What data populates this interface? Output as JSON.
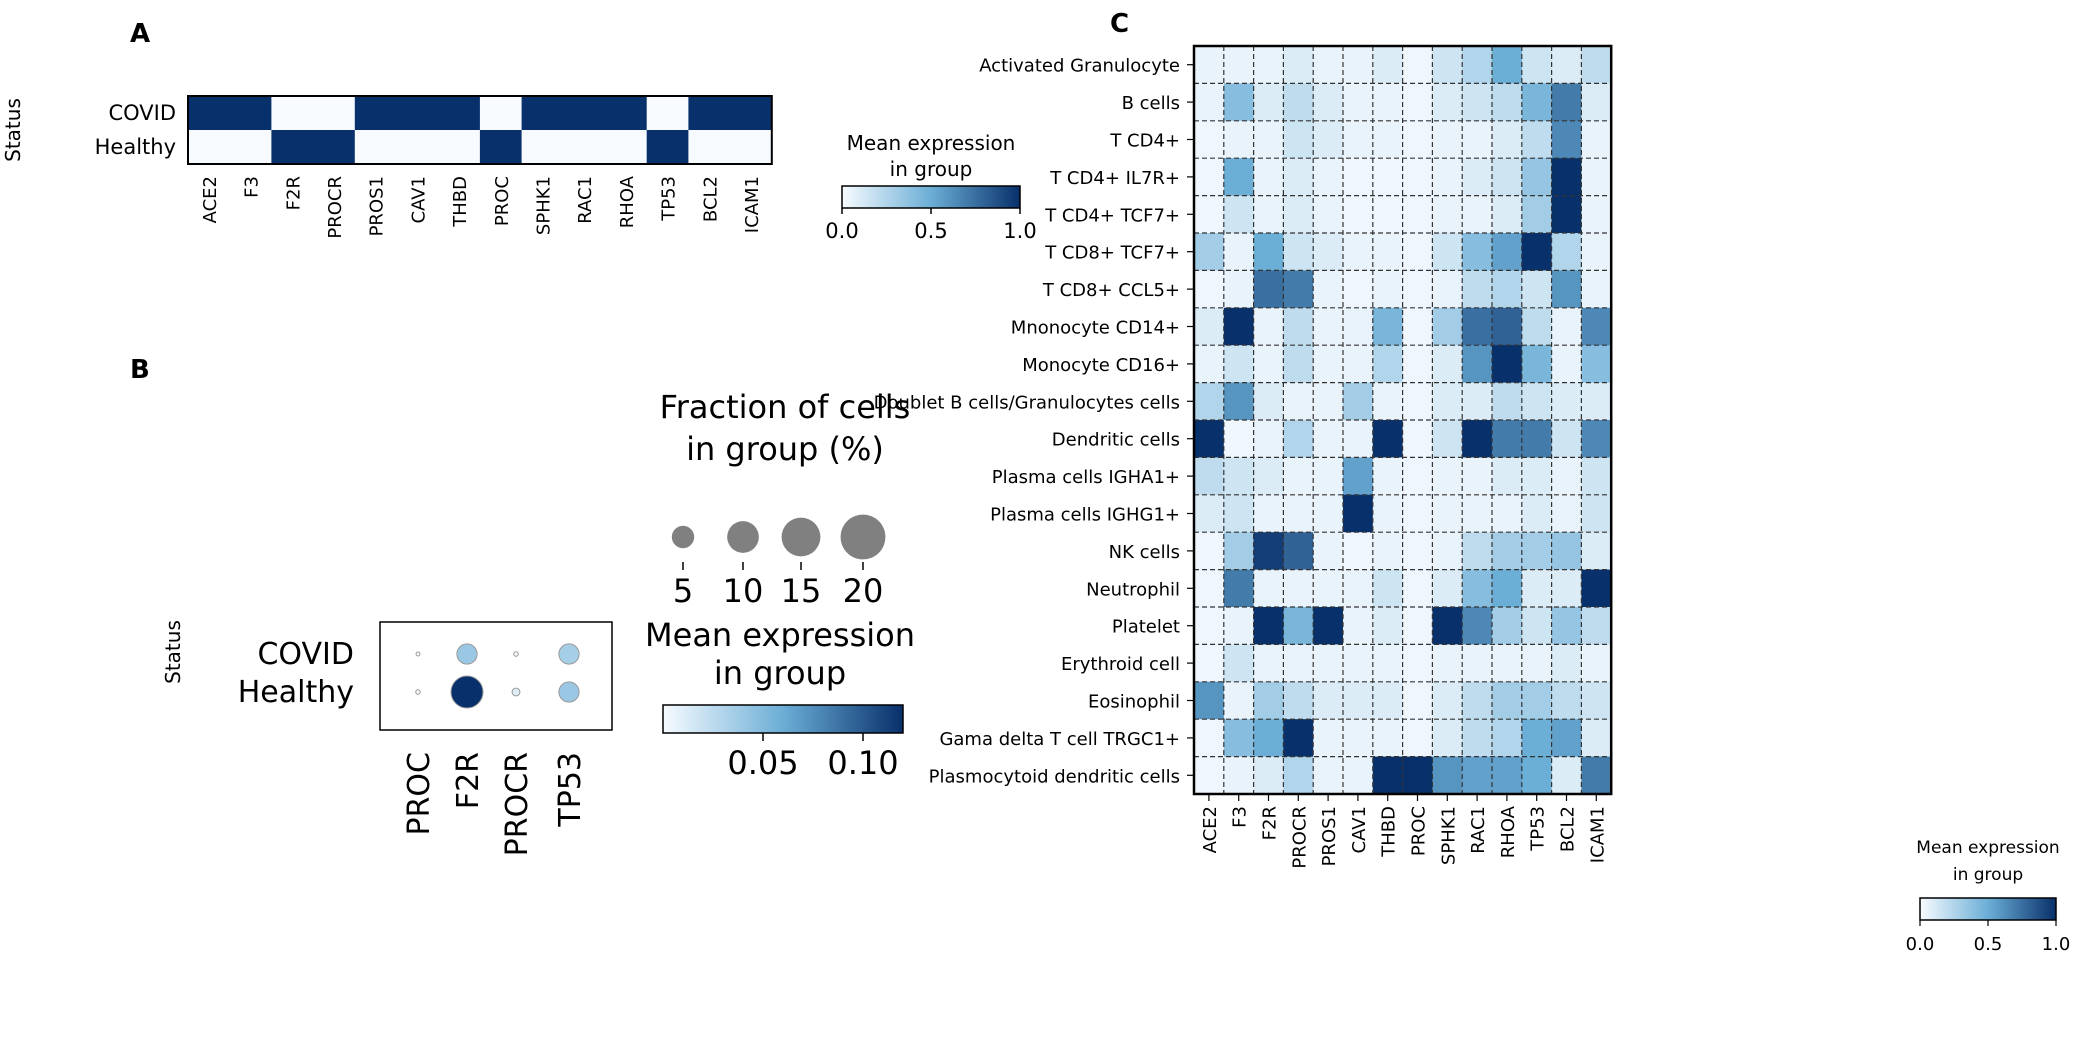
{
  "chart_data": [
    {
      "panel": "A",
      "type": "heatmap",
      "ylabel": "Status",
      "rows": [
        "COVID",
        "Healthy"
      ],
      "columns": [
        "ACE2",
        "F3",
        "F2R",
        "PROCR",
        "PROS1",
        "CAV1",
        "THBD",
        "PROC",
        "SPHK1",
        "RAC1",
        "RHOA",
        "TP53",
        "BCL2",
        "ICAM1"
      ],
      "values": [
        [
          1,
          1,
          0,
          0,
          1,
          1,
          1,
          0,
          1,
          1,
          1,
          0,
          1,
          1
        ],
        [
          0,
          0,
          1,
          1,
          0,
          0,
          0,
          1,
          0,
          0,
          0,
          1,
          0,
          0
        ]
      ],
      "colorbar": {
        "title_line1": "Mean expression",
        "title_line2": "in group",
        "ticks": [
          "0.0",
          "0.5",
          "1.0"
        ],
        "range": [
          0,
          1
        ]
      }
    },
    {
      "panel": "B",
      "type": "dotplot",
      "ylabel": "Status",
      "rows": [
        "COVID",
        "Healthy"
      ],
      "columns": [
        "PROC",
        "F2R",
        "PROCR",
        "TP53"
      ],
      "fraction_percent": [
        [
          0.3,
          8,
          0.4,
          8
        ],
        [
          0.4,
          20,
          1.2,
          8
        ]
      ],
      "mean_expression": [
        [
          0.0,
          0.04,
          0.0,
          0.035
        ],
        [
          0.0,
          0.12,
          0.01,
          0.04
        ]
      ],
      "size_legend": {
        "title_line1": "Fraction of cells",
        "title_line2": "in group (%)",
        "values": [
          5,
          10,
          15,
          20
        ],
        "labels": [
          "5",
          "10",
          "15",
          "20"
        ]
      },
      "colorbar": {
        "title_line1": "Mean expression",
        "title_line2": "in group",
        "ticks": [
          "0.05",
          "0.10"
        ],
        "tick_values": [
          0.05,
          0.1
        ],
        "range": [
          0,
          0.12
        ]
      }
    },
    {
      "panel": "C",
      "type": "heatmap",
      "rows": [
        "Activated Granulocyte",
        "B cells",
        "T CD4+",
        "T CD4+ IL7R+",
        "T CD4+ TCF7+",
        "T CD8+ TCF7+",
        "T CD8+ CCL5+",
        "Mnonocyte CD14+",
        "Monocyte CD16+",
        "Doublet B cells/Granulocytes cells",
        "Dendritic cells",
        "Plasma cells IGHA1+",
        "Plasma cells IGHG1+",
        "NK cells",
        "Neutrophil",
        "Platelet",
        "Erythroid cell",
        "Eosinophil",
        "Gama delta T cell TRGC1+",
        "Plasmocytoid dendritic cells"
      ],
      "columns": [
        "ACE2",
        "F3",
        "F2R",
        "PROCR",
        "PROS1",
        "CAV1",
        "THBD",
        "PROC",
        "SPHK1",
        "RAC1",
        "RHOA",
        "TP53",
        "BCL2",
        "ICAM1"
      ],
      "values": [
        [
          0.05,
          0.05,
          0.05,
          0.1,
          0.05,
          0.05,
          0.1,
          0.03,
          0.15,
          0.25,
          0.5,
          0.15,
          0.1,
          0.2
        ],
        [
          0.05,
          0.4,
          0.1,
          0.2,
          0.1,
          0.05,
          0.05,
          0.03,
          0.1,
          0.15,
          0.2,
          0.45,
          0.7,
          0.1
        ],
        [
          0.03,
          0.05,
          0.05,
          0.15,
          0.1,
          0.05,
          0.05,
          0.03,
          0.05,
          0.05,
          0.1,
          0.2,
          0.65,
          0.05
        ],
        [
          0.03,
          0.5,
          0.05,
          0.1,
          0.05,
          0.03,
          0.03,
          0.03,
          0.05,
          0.1,
          0.15,
          0.35,
          1.0,
          0.05
        ],
        [
          0.03,
          0.15,
          0.05,
          0.1,
          0.05,
          0.03,
          0.03,
          0.03,
          0.05,
          0.05,
          0.1,
          0.3,
          1.0,
          0.05
        ],
        [
          0.3,
          0.05,
          0.5,
          0.15,
          0.1,
          0.05,
          0.05,
          0.03,
          0.15,
          0.4,
          0.55,
          1.0,
          0.25,
          0.05
        ],
        [
          0.03,
          0.05,
          0.75,
          0.7,
          0.05,
          0.03,
          0.05,
          0.03,
          0.05,
          0.2,
          0.25,
          0.15,
          0.6,
          0.05
        ],
        [
          0.1,
          1.0,
          0.05,
          0.2,
          0.05,
          0.05,
          0.45,
          0.03,
          0.3,
          0.75,
          0.8,
          0.2,
          0.05,
          0.65
        ],
        [
          0.05,
          0.15,
          0.05,
          0.2,
          0.05,
          0.05,
          0.25,
          0.03,
          0.1,
          0.6,
          1.0,
          0.45,
          0.05,
          0.4
        ],
        [
          0.25,
          0.6,
          0.1,
          0.05,
          0.05,
          0.3,
          0.05,
          0.03,
          0.1,
          0.1,
          0.2,
          0.15,
          0.1,
          0.1
        ],
        [
          1.0,
          0.03,
          0.05,
          0.25,
          0.05,
          0.05,
          1.0,
          0.03,
          0.15,
          1.0,
          0.7,
          0.7,
          0.15,
          0.65
        ],
        [
          0.2,
          0.15,
          0.1,
          0.05,
          0.05,
          0.55,
          0.05,
          0.03,
          0.05,
          0.05,
          0.1,
          0.1,
          0.05,
          0.15
        ],
        [
          0.1,
          0.15,
          0.05,
          0.05,
          0.05,
          1.0,
          0.05,
          0.03,
          0.05,
          0.05,
          0.05,
          0.1,
          0.05,
          0.15
        ],
        [
          0.03,
          0.3,
          0.95,
          0.8,
          0.05,
          0.03,
          0.05,
          0.03,
          0.05,
          0.2,
          0.3,
          0.3,
          0.35,
          0.1
        ],
        [
          0.03,
          0.7,
          0.05,
          0.05,
          0.05,
          0.05,
          0.15,
          0.03,
          0.1,
          0.4,
          0.5,
          0.1,
          0.1,
          1.0
        ],
        [
          0.03,
          0.05,
          1.0,
          0.45,
          1.0,
          0.05,
          0.1,
          0.03,
          1.0,
          0.65,
          0.3,
          0.15,
          0.35,
          0.2
        ],
        [
          0.03,
          0.15,
          0.05,
          0.05,
          0.05,
          0.05,
          0.05,
          0.03,
          0.05,
          0.05,
          0.05,
          0.05,
          0.1,
          0.05
        ],
        [
          0.6,
          0.05,
          0.3,
          0.2,
          0.1,
          0.1,
          0.1,
          0.03,
          0.1,
          0.2,
          0.3,
          0.3,
          0.2,
          0.15
        ],
        [
          0.03,
          0.4,
          0.5,
          1.0,
          0.05,
          0.05,
          0.05,
          0.03,
          0.1,
          0.2,
          0.25,
          0.5,
          0.55,
          0.1
        ],
        [
          0.03,
          0.05,
          0.1,
          0.25,
          0.05,
          0.05,
          1.0,
          1.0,
          0.6,
          0.55,
          0.55,
          0.5,
          0.1,
          0.7
        ]
      ],
      "colorbar": {
        "title_line1": "Mean expression",
        "title_line2": "in group",
        "ticks": [
          "0.0",
          "0.5",
          "1.0"
        ],
        "range": [
          0,
          1
        ]
      }
    }
  ],
  "colors": {
    "low": "#f7fbff",
    "mid": "#6baed6",
    "high": "#08306b",
    "dot_grey": "#808080"
  }
}
